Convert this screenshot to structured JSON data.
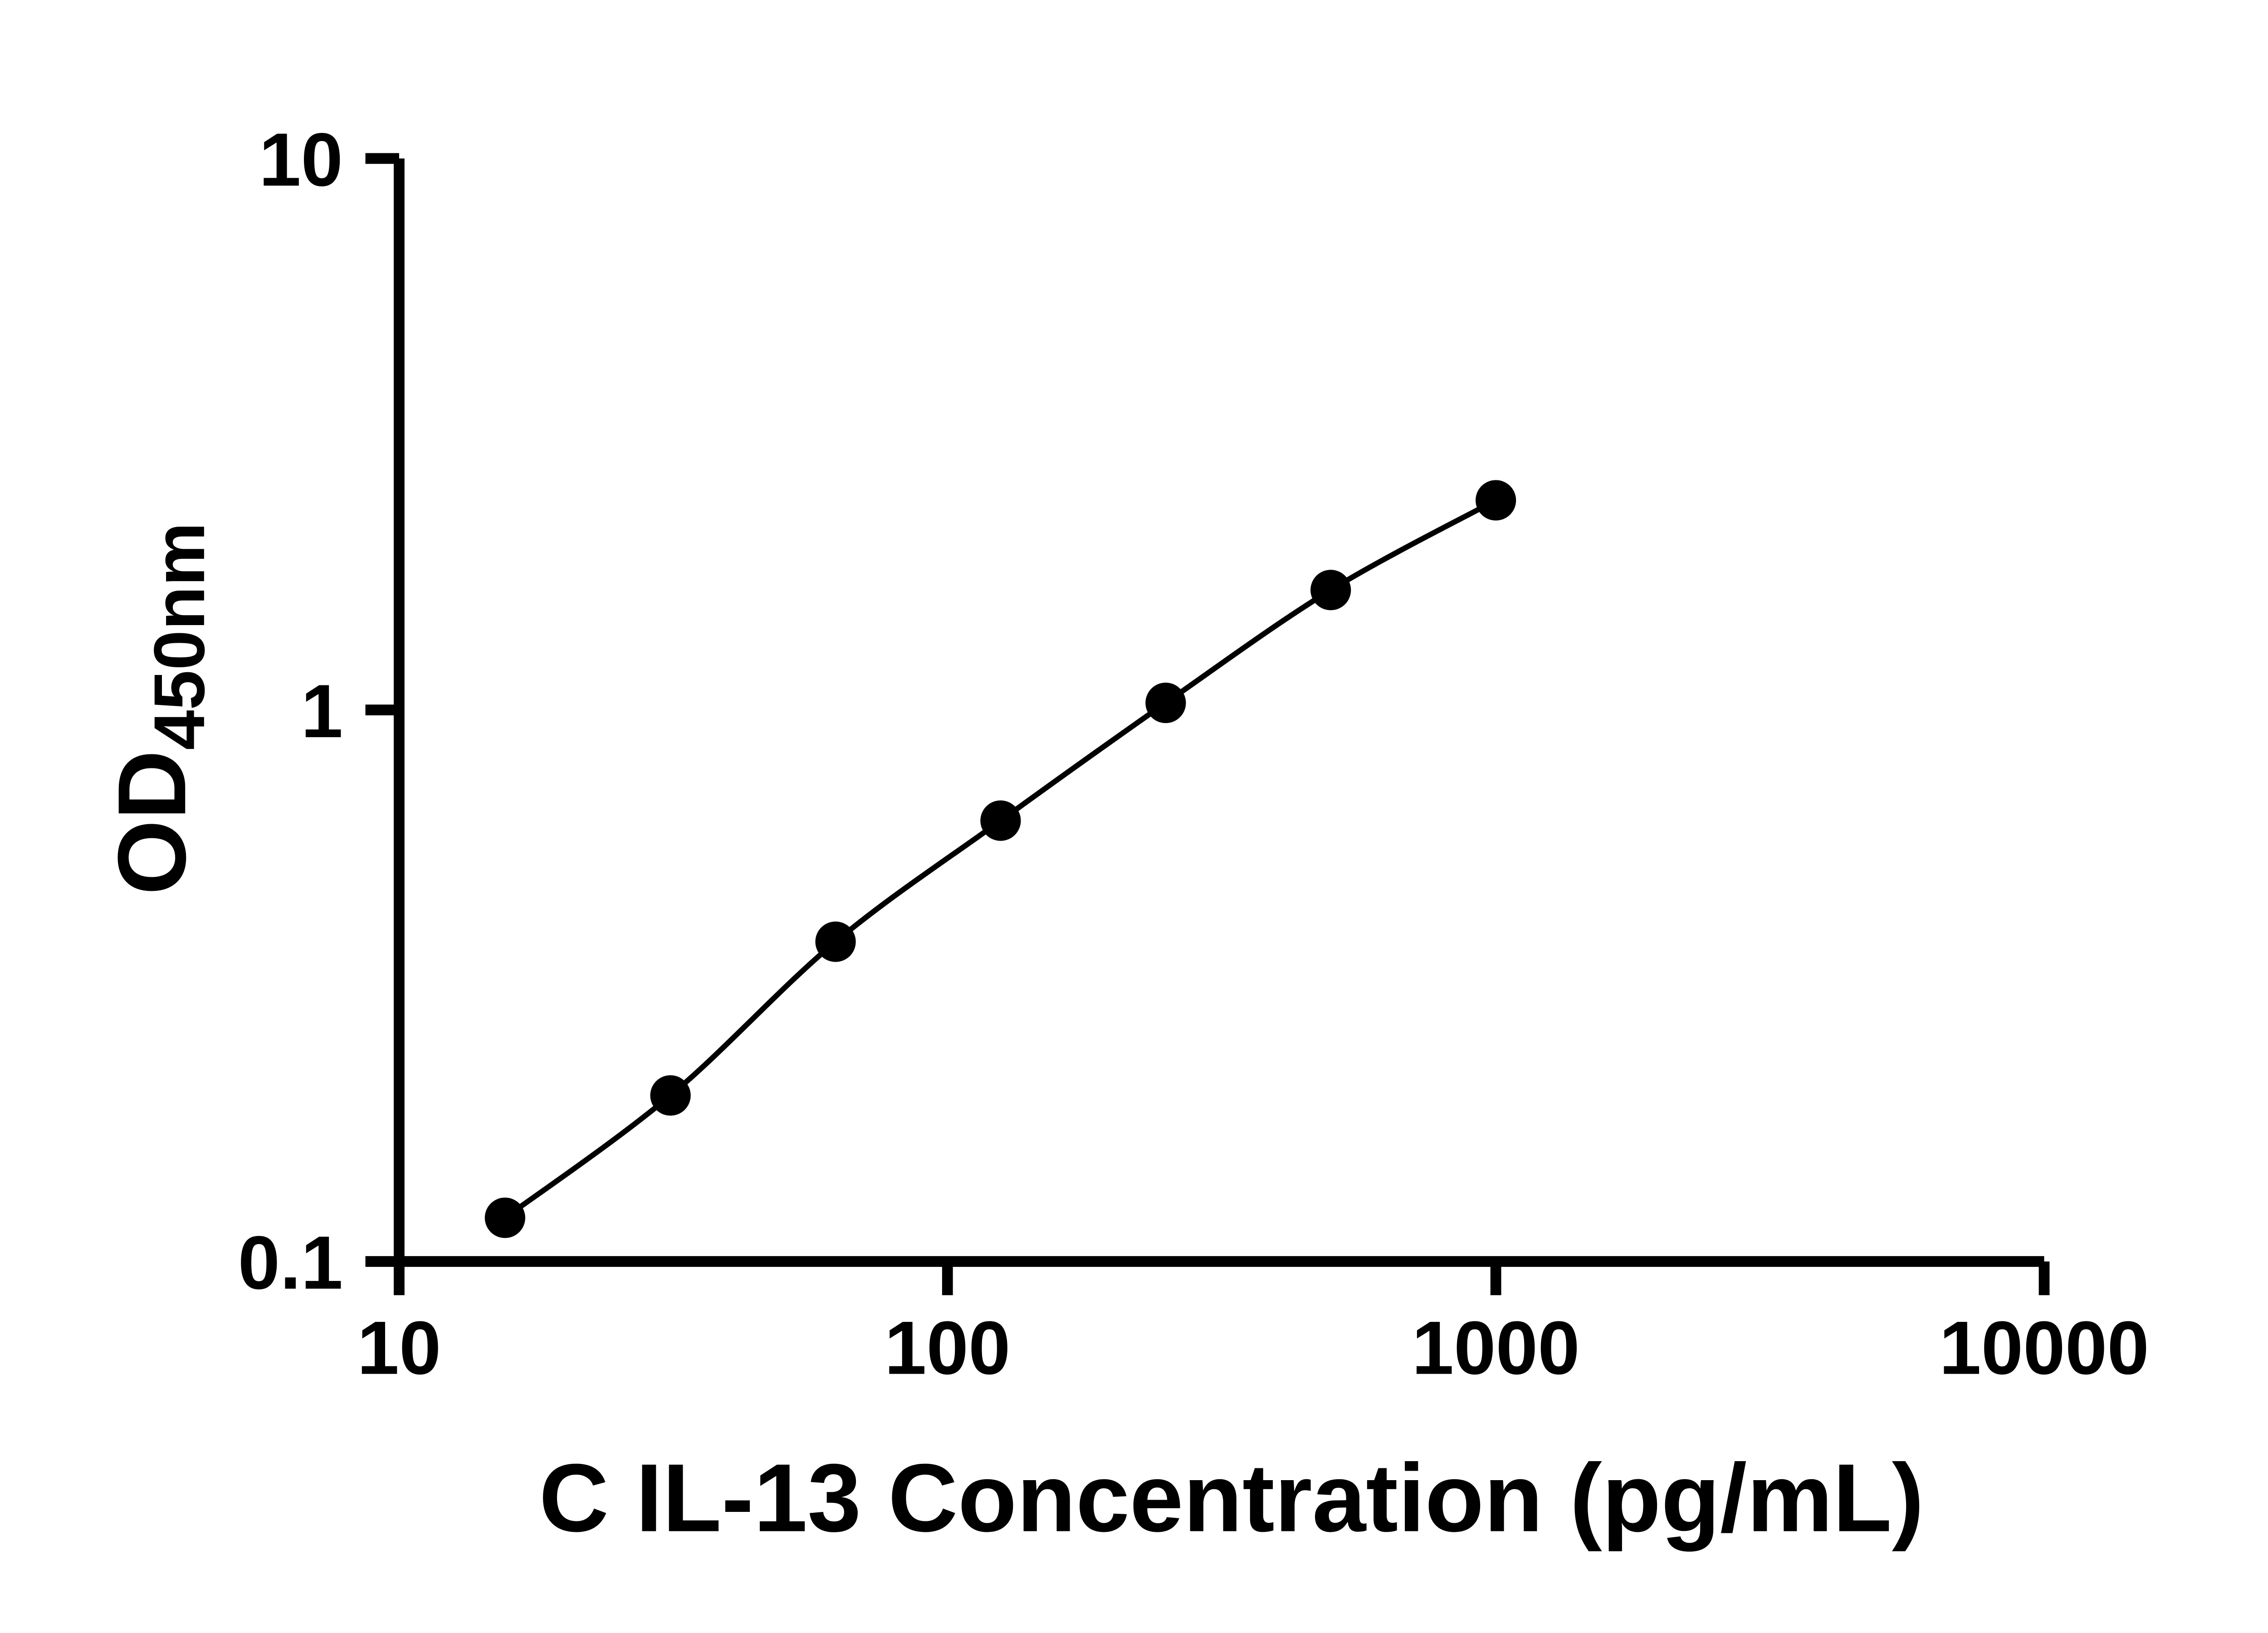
{
  "figure": {
    "background_color": "#ffffff"
  },
  "chart_data": {
    "type": "line",
    "title": "",
    "xlabel": "C IL-13 Concentration (pg/mL)",
    "ylabel": "OD",
    "ylabel_subscript": "450nm",
    "x": [
      15.6,
      31.25,
      62.5,
      125,
      250,
      500,
      1000
    ],
    "y": [
      0.12,
      0.2,
      0.38,
      0.63,
      1.03,
      1.65,
      2.4
    ],
    "xscale": "log",
    "yscale": "log",
    "xlim": [
      10,
      10000
    ],
    "ylim": [
      0.1,
      10
    ],
    "x_ticks": [
      {
        "value": 10,
        "label": "10"
      },
      {
        "value": 100,
        "label": "100"
      },
      {
        "value": 1000,
        "label": "1000"
      },
      {
        "value": 10000,
        "label": "10000"
      }
    ],
    "y_ticks": [
      {
        "value": 10,
        "label": "10"
      },
      {
        "value": 1,
        "label": "1"
      },
      {
        "value": 0.1,
        "label": "0.1"
      }
    ],
    "grid": false,
    "legend": false,
    "line_color": "#000000",
    "marker_color": "#000000",
    "axis_color": "#000000"
  }
}
